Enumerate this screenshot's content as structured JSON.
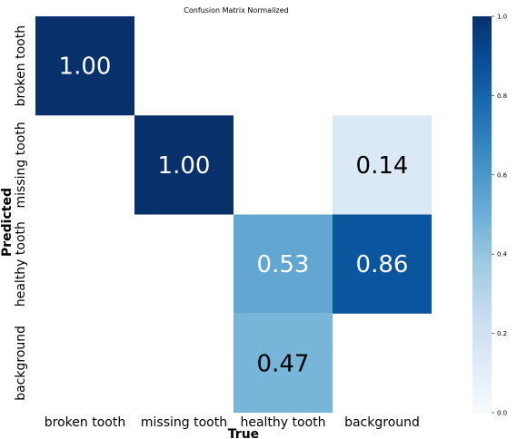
{
  "chart_data": {
    "type": "heatmap",
    "title": "Confusion Matrix Normalized",
    "xlabel": "True",
    "ylabel": "Predicted",
    "x_categories": [
      "broken tooth",
      "missing tooth",
      "healthy tooth",
      "background"
    ],
    "y_categories": [
      "broken tooth",
      "missing tooth",
      "healthy tooth",
      "background"
    ],
    "values": [
      [
        1.0,
        null,
        null,
        null
      ],
      [
        null,
        1.0,
        null,
        0.14
      ],
      [
        null,
        null,
        0.53,
        0.86
      ],
      [
        null,
        null,
        0.47,
        null
      ]
    ],
    "labels": [
      [
        "1.00",
        "",
        "",
        ""
      ],
      [
        "",
        "1.00",
        "",
        "0.14"
      ],
      [
        "",
        "",
        "0.53",
        "0.86"
      ],
      [
        "",
        "",
        "0.47",
        ""
      ]
    ],
    "colorbar": {
      "range": [
        0.0,
        1.0
      ],
      "ticks": [
        "0.0",
        "0.2",
        "0.4",
        "0.6",
        "0.8",
        "1.0"
      ],
      "colormap": "Blues"
    }
  }
}
